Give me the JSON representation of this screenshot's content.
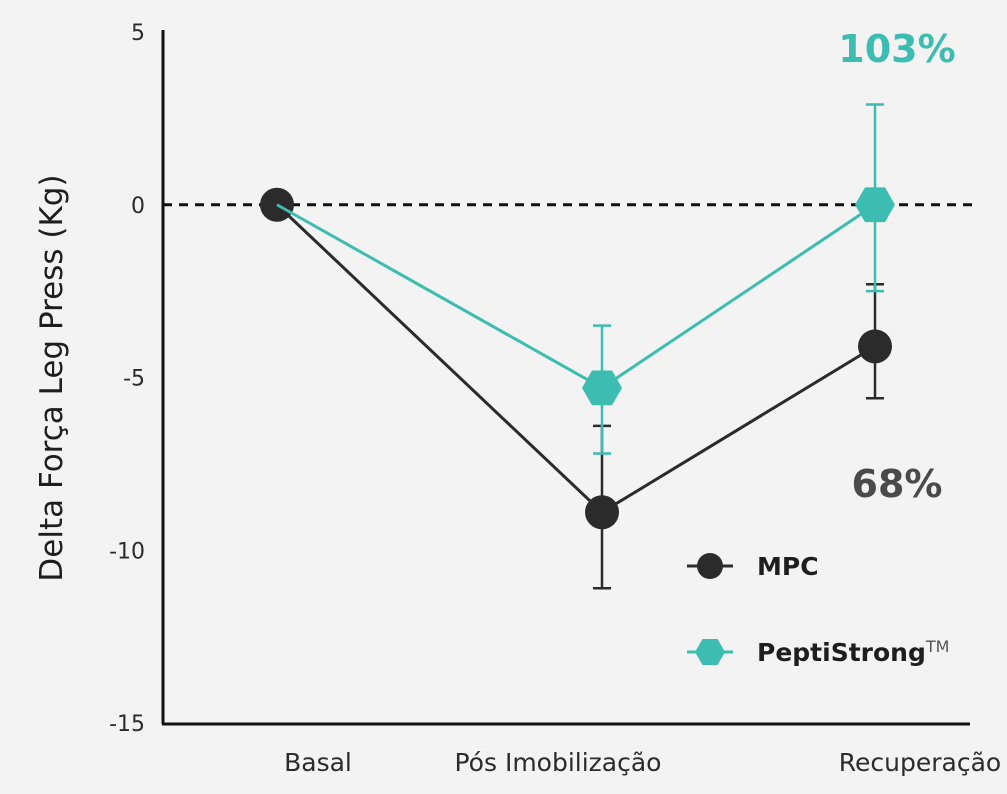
{
  "chart_data": {
    "type": "line",
    "title": "",
    "xlabel": "",
    "ylabel": "Delta Força Leg Press (Kg)",
    "ylim": [
      -15,
      5
    ],
    "yticks": [
      5,
      0,
      -5,
      -10,
      -15
    ],
    "ytick_labels": [
      "5",
      "0",
      "-5",
      "-10",
      "-15"
    ],
    "categories": [
      "Basal",
      "Pós Imobilização",
      "Recuperação"
    ],
    "reference_line": 0,
    "series": [
      {
        "name": "MPC",
        "color": "#2b2b2b",
        "marker": "circle",
        "values": [
          0,
          -8.9,
          -4.1
        ],
        "err_low": [
          null,
          -11.1,
          -5.6
        ],
        "err_high": [
          null,
          -6.4,
          -2.3
        ]
      },
      {
        "name": "PeptiStrong",
        "trademark": "TM",
        "color": "#3dbdb1",
        "marker": "hexagon",
        "values": [
          0,
          -5.3,
          0
        ],
        "err_low": [
          null,
          -7.2,
          -2.5
        ],
        "err_high": [
          null,
          -3.5,
          2.9
        ]
      }
    ],
    "annotations": [
      {
        "text": "103%",
        "color": "#3dbdb1"
      },
      {
        "text": "68%",
        "color": "#4a4a4a"
      }
    ],
    "legend_position": "bottom-right"
  }
}
